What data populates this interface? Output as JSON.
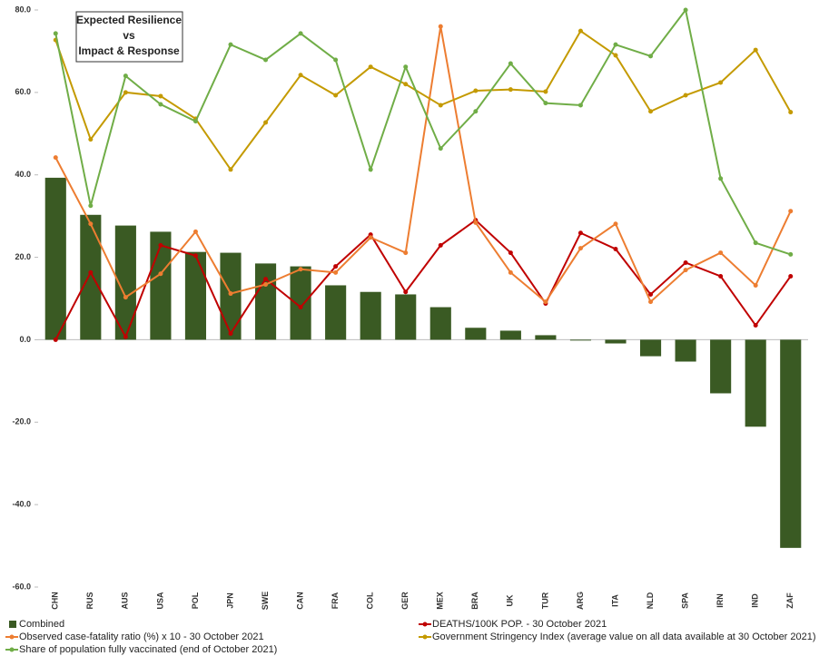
{
  "chart_data": {
    "type": "combo",
    "title": [
      "Expected Resilience",
      "vs",
      "Impact & Response"
    ],
    "categories": [
      "CHN",
      "RUS",
      "AUS",
      "USA",
      "POL",
      "JPN",
      "SWE",
      "CAN",
      "FRA",
      "COL",
      "GER",
      "MEX",
      "BRA",
      "UK",
      "TUR",
      "ARG",
      "ITA",
      "NLD",
      "SPA",
      "IRN",
      "IND",
      "ZAF"
    ],
    "ylim": [
      -60,
      80
    ],
    "yticks": [
      {
        "value": -60,
        "label": "-60.0"
      },
      {
        "value": -40,
        "label": "-40.0"
      },
      {
        "value": -20,
        "label": "-20.0"
      },
      {
        "value": 0,
        "label": "0.0"
      },
      {
        "value": 20,
        "label": "20.0"
      },
      {
        "value": 40,
        "label": "40.0"
      },
      {
        "value": 60,
        "label": "60.0"
      },
      {
        "value": 80,
        "label": "80.0"
      }
    ],
    "series": [
      {
        "name": "Combined",
        "type": "bar",
        "color": "#3a5a23",
        "values": [
          39.3,
          30.3,
          27.7,
          26.2,
          21.3,
          21.1,
          18.5,
          17.8,
          13.2,
          11.6,
          11.0,
          7.9,
          2.9,
          2.2,
          1.1,
          -0.2,
          -0.9,
          -4.0,
          -5.3,
          -13.0,
          -21.1,
          -50.5
        ]
      },
      {
        "name": "DEATHS/100K POP. - 30 October 2021",
        "type": "line",
        "color": "#c00000",
        "values": [
          0.0,
          16.3,
          0.7,
          22.9,
          20.4,
          1.5,
          14.7,
          7.9,
          17.8,
          25.5,
          11.6,
          22.9,
          29.0,
          21.1,
          8.8,
          25.9,
          22.0,
          11.0,
          18.7,
          15.4,
          3.5,
          15.4
        ]
      },
      {
        "name": "Observed case-fatality ratio (%) x 10 - 30 October 2021",
        "type": "line",
        "color": "#ed7d31",
        "values": [
          44.2,
          28.1,
          10.3,
          16.0,
          26.2,
          11.2,
          13.4,
          17.1,
          16.3,
          24.8,
          21.1,
          76.0,
          28.4,
          16.3,
          9.2,
          22.2,
          28.1,
          9.2,
          16.9,
          21.1,
          13.2,
          31.2
        ]
      },
      {
        "name": "Government Stringency Index (average value on all data available at 30 October 2021)",
        "type": "line",
        "color": "#c49a00",
        "values": [
          72.7,
          48.6,
          60.0,
          59.1,
          53.6,
          41.3,
          52.7,
          64.2,
          59.3,
          66.2,
          62.0,
          56.9,
          60.4,
          60.7,
          60.2,
          74.9,
          69.0,
          55.4,
          59.3,
          62.4,
          70.3,
          55.2
        ]
      },
      {
        "name": "Share of population fully vaccinated (end of October 2021)",
        "type": "line",
        "color": "#70ad47",
        "values": [
          74.3,
          32.5,
          64.0,
          57.1,
          53.0,
          71.6,
          67.9,
          74.3,
          67.9,
          41.3,
          66.2,
          46.4,
          55.4,
          67.0,
          57.4,
          56.9,
          71.6,
          68.8,
          80.0,
          39.1,
          23.5,
          20.7
        ]
      }
    ]
  }
}
